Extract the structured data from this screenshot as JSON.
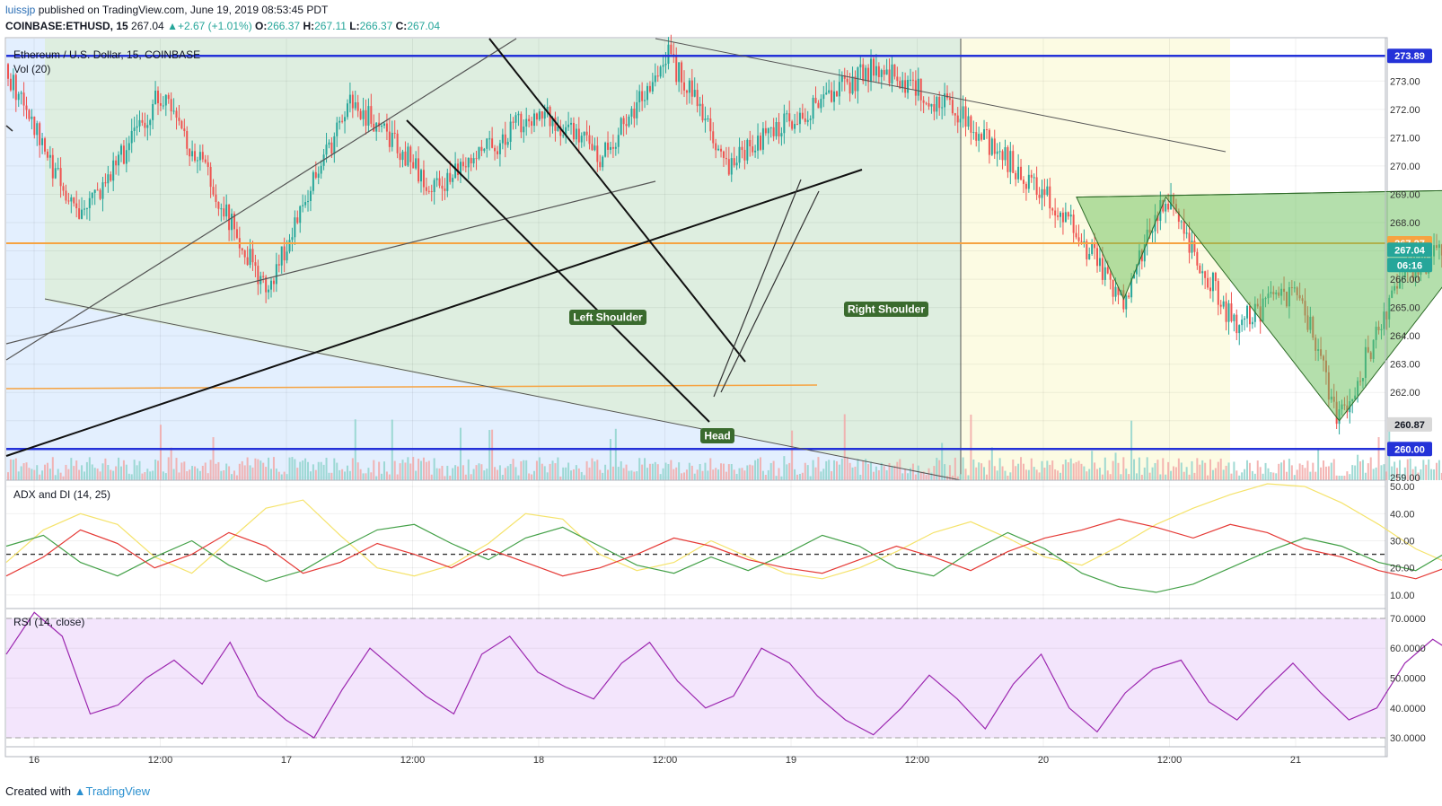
{
  "header": {
    "author": "luissjp",
    "published_text": "published on TradingView.com, June 19, 2019 08:53:45 PDT",
    "symbol": "COINBASE:ETHUSD, 15",
    "last": "267.04",
    "change_arrow": "▲",
    "change": "+2.67 (+1.01%)",
    "o_label": "O:",
    "o": "266.37",
    "h_label": "H:",
    "h": "267.11",
    "l_label": "L:",
    "l": "266.37",
    "c_label": "C:",
    "c": "267.04"
  },
  "legend": {
    "series_title": "Ethereum / U.S. Dollar, 15, COINBASE",
    "volume": "Vol (20)",
    "adx": "ADX and DI (14, 25)",
    "rsi": "RSI (14, close)"
  },
  "footer": {
    "prefix": "Created with",
    "brand": "TradingView"
  },
  "colors": {
    "up": "#26a69a",
    "down": "#ef5350",
    "blue_line": "#2432d8",
    "orange_line": "#f6a341",
    "pattern_fill": "#6abf5a",
    "adx_yellow": "#f5e36b",
    "adx_green": "#43a047",
    "adx_red": "#e53935",
    "rsi_line": "#9c27b0",
    "rsi_band": "#f3e5fc"
  },
  "chart_data": [
    {
      "type": "candlestick",
      "title": "Ethereum / U.S. Dollar, 15, COINBASE",
      "ylim": [
        258.9,
        274.5
      ],
      "y_ticks": [
        259,
        260,
        261,
        262,
        263,
        264,
        265,
        266,
        267,
        268,
        269,
        270,
        271,
        272,
        273
      ],
      "x_tick_labels": [
        "16",
        "12:00",
        "17",
        "12:00",
        "18",
        "12:00",
        "19",
        "12:00",
        "20",
        "12:00",
        "21"
      ],
      "price_tags": [
        {
          "value": "273.89",
          "color": "#2432d8"
        },
        {
          "value": "267.27",
          "color": "#f6a341"
        },
        {
          "value": "267.04",
          "color": "#26a69a"
        },
        {
          "value": "06:16",
          "color": "#26a69a"
        },
        {
          "value": "260.87",
          "color": "#d8d8d8"
        },
        {
          "value": "260.00",
          "color": "#2432d8"
        }
      ],
      "horizontal_levels": [
        273.89,
        267.27,
        260.0
      ],
      "pattern": {
        "name": "head and shoulders",
        "labels": [
          "Left Shoulder",
          "Head",
          "Right Shoulder"
        ],
        "points": [
          {
            "t": "2019-06-18 02:30",
            "p": 268.9
          },
          {
            "t": "2019-06-18 04:45",
            "p": 265.3
          },
          {
            "t": "2019-06-18 06:45",
            "p": 268.9
          },
          {
            "t": "2019-06-18 15:00",
            "p": 261.0
          },
          {
            "t": "2019-06-18 23:30",
            "p": 269.2
          },
          {
            "t": "2019-06-19 07:00",
            "p": 265.8
          },
          {
            "t": "2019-06-19 09:00",
            "p": 269.3
          }
        ]
      },
      "path": [
        [
          "2019-06-15 23:30",
          273.6
        ],
        [
          "2019-06-16 03:00",
          268.0
        ],
        [
          "2019-06-16 07:00",
          272.6
        ],
        [
          "2019-06-16 12:00",
          265.6
        ],
        [
          "2019-06-16 16:00",
          272.4
        ],
        [
          "2019-06-16 20:00",
          269.2
        ],
        [
          "2019-06-17 01:00",
          272.0
        ],
        [
          "2019-06-17 04:00",
          270.3
        ],
        [
          "2019-06-17 07:00",
          274.0
        ],
        [
          "2019-06-17 10:00",
          270.1
        ],
        [
          "2019-06-17 14:00",
          272.2
        ],
        [
          "2019-06-17 17:00",
          273.5
        ],
        [
          "2019-06-17 21:00",
          271.8
        ],
        [
          "2019-06-18 01:30",
          268.6
        ],
        [
          "2019-06-18 04:45",
          265.3
        ],
        [
          "2019-06-18 06:45",
          268.9
        ],
        [
          "2019-06-18 10:00",
          264.4
        ],
        [
          "2019-06-18 13:00",
          265.7
        ],
        [
          "2019-06-18 15:00",
          261.0
        ],
        [
          "2019-06-18 18:00",
          266.2
        ],
        [
          "2019-06-18 21:30",
          267.5
        ],
        [
          "2019-06-18 23:30",
          269.2
        ],
        [
          "2019-06-19 03:00",
          267.2
        ],
        [
          "2019-06-19 07:00",
          265.8
        ],
        [
          "2019-06-19 08:45",
          267.04
        ]
      ]
    },
    {
      "type": "line",
      "title": "ADX and DI (14, 25)",
      "ylim": [
        5,
        52
      ],
      "y_ticks": [
        10,
        20,
        30,
        40,
        50
      ],
      "reference_line": 25,
      "series": [
        {
          "key": "yellow",
          "y": [
            22,
            34,
            40,
            36,
            24,
            18,
            30,
            42,
            45,
            32,
            20,
            17,
            21,
            29,
            40,
            38,
            25,
            19,
            22,
            30,
            24,
            18,
            16,
            20,
            26,
            33,
            37,
            31,
            24,
            21,
            28,
            36,
            42,
            47,
            51,
            50,
            44,
            36,
            27,
            21,
            28,
            38,
            47,
            41,
            28,
            20,
            17
          ]
        },
        {
          "key": "green",
          "y": [
            28,
            32,
            22,
            17,
            24,
            30,
            21,
            15,
            19,
            27,
            34,
            36,
            29,
            23,
            31,
            35,
            28,
            21,
            18,
            24,
            19,
            25,
            32,
            28,
            20,
            17,
            26,
            33,
            27,
            18,
            13,
            11,
            14,
            20,
            26,
            31,
            28,
            22,
            19,
            27,
            34,
            38,
            32,
            24,
            29,
            34,
            27
          ]
        },
        {
          "key": "red",
          "y": [
            17,
            24,
            34,
            29,
            20,
            25,
            33,
            28,
            18,
            22,
            29,
            25,
            20,
            27,
            22,
            17,
            20,
            25,
            31,
            28,
            23,
            20,
            18,
            23,
            28,
            24,
            19,
            26,
            31,
            34,
            38,
            35,
            31,
            36,
            33,
            27,
            24,
            19,
            16,
            21,
            15,
            17,
            28,
            36,
            33,
            36,
            27
          ]
        }
      ]
    },
    {
      "type": "line",
      "title": "RSI (14, close)",
      "ylim": [
        27,
        73
      ],
      "y_ticks": [
        "30.0000",
        "40.0000",
        "50.0000",
        "60.0000",
        "70.0000"
      ],
      "bands": [
        30,
        70
      ],
      "series": [
        {
          "key": "rsi",
          "y": [
            58,
            72,
            64,
            38,
            41,
            50,
            56,
            48,
            62,
            44,
            36,
            30,
            46,
            60,
            52,
            44,
            38,
            58,
            64,
            52,
            47,
            43,
            55,
            62,
            49,
            40,
            44,
            60,
            55,
            44,
            36,
            31,
            40,
            51,
            43,
            33,
            48,
            58,
            40,
            32,
            45,
            53,
            56,
            42,
            36,
            46,
            55,
            45,
            36,
            40,
            55,
            63,
            57,
            66,
            71,
            69,
            53,
            47,
            38,
            42,
            44,
            53
          ]
        }
      ]
    }
  ]
}
